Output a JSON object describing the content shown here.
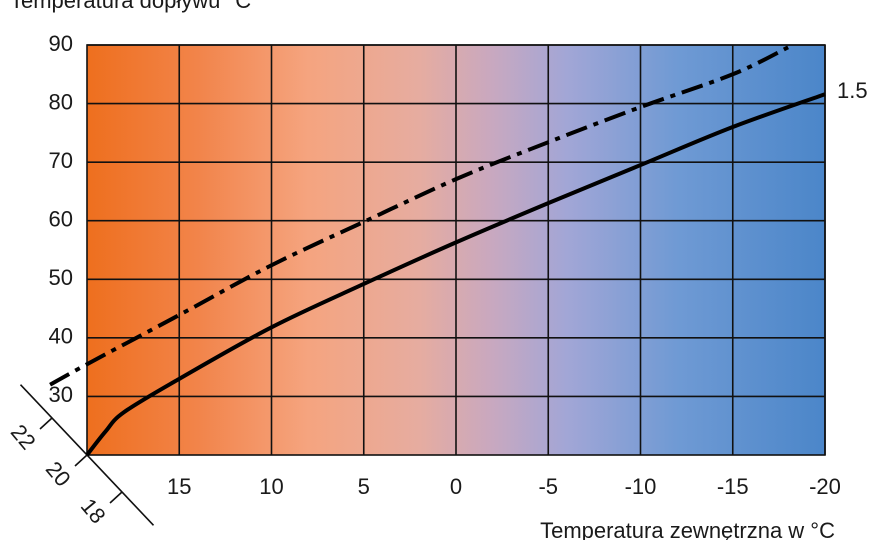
{
  "chart_data": {
    "type": "line",
    "title": "Temperatura dopływu °C",
    "x_label": "Temperatura zewnętrzna w °C",
    "xlim": [
      20,
      -20
    ],
    "xticks": [
      15,
      10,
      5,
      0,
      -5,
      -10,
      -15,
      -20
    ],
    "ylim": [
      20,
      90
    ],
    "yticks": [
      30,
      40,
      50,
      60,
      70,
      80,
      90
    ],
    "grid": true,
    "room_temperature_ticks": [
      22,
      20,
      18
    ],
    "series": [
      {
        "name": "1.5",
        "color": "#000000",
        "style": "solid",
        "x": [
          20,
          19,
          18,
          15,
          10,
          5,
          0,
          -5,
          -10,
          -15,
          -20
        ],
        "values": [
          20,
          24,
          27.3,
          33,
          41.8,
          49.2,
          56.3,
          63,
          69.5,
          76,
          81.6
        ]
      },
      {
        "color": "#000000",
        "style": "dashdot",
        "x": [
          22,
          20,
          15,
          10,
          5,
          0,
          -5,
          -10,
          -15,
          -18
        ],
        "values": [
          32,
          35.5,
          43.9,
          52.4,
          59.8,
          67.1,
          73.4,
          79.4,
          85,
          89.6
        ]
      }
    ]
  }
}
